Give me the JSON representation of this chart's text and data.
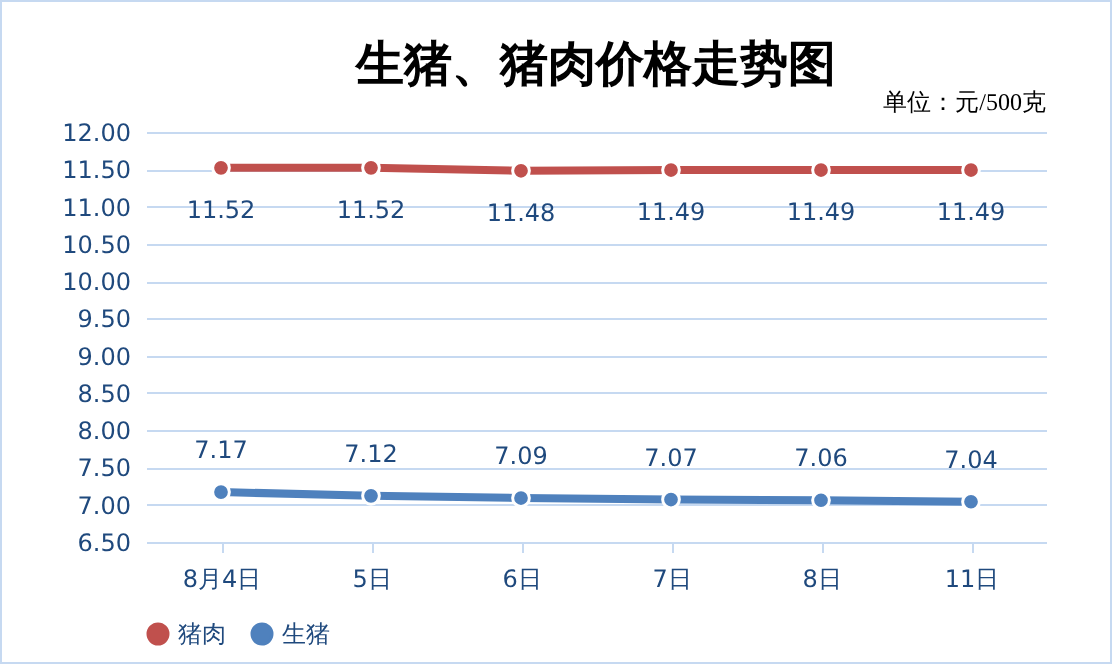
{
  "chart_data": {
    "type": "line",
    "title": "生猪、猪肉价格走势图",
    "annotations": [
      "单位：元/500克"
    ],
    "categories": [
      "8月4日",
      "5日",
      "6日",
      "7日",
      "8日",
      "11日"
    ],
    "series": [
      {
        "name": "猪肉",
        "color": "#c0504d",
        "values": [
          11.52,
          11.52,
          11.48,
          11.49,
          11.49,
          11.49
        ]
      },
      {
        "name": "生猪",
        "color": "#4f81bd",
        "values": [
          7.17,
          7.12,
          7.09,
          7.07,
          7.06,
          7.04
        ]
      }
    ],
    "ylim": [
      6.5,
      12
    ],
    "yticks": [
      {
        "value": 6.5,
        "label": "6.50"
      },
      {
        "value": 7,
        "label": "7.00"
      },
      {
        "value": 7.5,
        "label": "7.50"
      },
      {
        "value": 8,
        "label": "8.00"
      },
      {
        "value": 8.5,
        "label": "8.50"
      },
      {
        "value": 9,
        "label": "9.00"
      },
      {
        "value": 9.5,
        "label": "9.50"
      },
      {
        "value": 10,
        "label": "10.00"
      },
      {
        "value": 10.5,
        "label": "10.50"
      },
      {
        "value": 11,
        "label": "11.00"
      },
      {
        "value": 11.5,
        "label": "11.50"
      },
      {
        "value": 12,
        "label": "12.00"
      }
    ],
    "grid": "y",
    "legend": "bottom",
    "marker": "circle",
    "line_style": "solid",
    "data_labels": true
  }
}
